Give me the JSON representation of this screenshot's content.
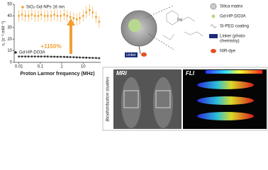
{
  "chart_data": {
    "type": "scatter",
    "legend": [],
    "xlabel": "Proton Larmor frequency (MHz)",
    "ylabel": "r₁ (s⁻¹ mM⁻¹)",
    "log_x": true,
    "xlim": [
      0.006,
      66
    ],
    "xticks": [
      0.01,
      0.1,
      1,
      10
    ],
    "ylim": [
      0,
      50
    ],
    "yticks": [
      0,
      10,
      20,
      30,
      40,
      50
    ],
    "annotation": "+1150%",
    "series": [
      {
        "name": "SiO₂-Gd-NPs 16 nm",
        "color": "#f0a030",
        "x": [
          0.01,
          0.014,
          0.02,
          0.028,
          0.04,
          0.056,
          0.08,
          0.11,
          0.16,
          0.22,
          0.32,
          0.45,
          0.63,
          0.9,
          1.3,
          1.8,
          2.5,
          3.6,
          5,
          7,
          10,
          14,
          20,
          28,
          40,
          56
        ],
        "values": [
          40,
          41,
          40,
          40,
          41,
          40,
          40,
          41,
          40,
          40,
          40,
          41,
          40,
          40,
          41,
          40,
          39,
          38,
          37,
          38,
          40,
          43,
          45,
          43,
          39,
          35
        ],
        "errors": [
          5,
          5,
          5,
          5,
          5,
          5,
          5,
          5,
          5,
          5,
          5,
          5,
          5,
          5,
          5,
          5,
          5,
          5,
          5,
          5,
          5,
          5,
          5,
          5,
          5,
          5
        ]
      },
      {
        "name": "Gd-HP-DO3A",
        "color": "#333333",
        "x": [
          0.01,
          0.014,
          0.02,
          0.028,
          0.04,
          0.056,
          0.08,
          0.11,
          0.16,
          0.22,
          0.32,
          0.45,
          0.63,
          0.9,
          1.3,
          1.8,
          2.5,
          3.6,
          5,
          7,
          10,
          14,
          20,
          28,
          40,
          56
        ],
        "values": [
          5,
          5,
          5,
          5,
          5,
          5,
          5,
          5,
          5,
          5,
          4.9,
          4.9,
          4.8,
          4.8,
          4.7,
          4.6,
          4.5,
          4.4,
          4.3,
          4.2,
          4.1,
          4,
          3.9,
          3.8,
          3.7,
          3.6
        ]
      }
    ]
  },
  "schematic": {
    "linker_tag": "Linker",
    "legend": [
      [
        "Silica matrix"
      ],
      [
        "Gd-HP-DO3A"
      ],
      [
        "Si-PEG coating"
      ],
      [
        "Linker (photo-",
        "chemistry)"
      ],
      [
        "NIR-dye"
      ]
    ]
  },
  "imaging": {
    "side_label": "Biodistribution studies",
    "panels": [
      "MRI",
      "FLI"
    ]
  }
}
